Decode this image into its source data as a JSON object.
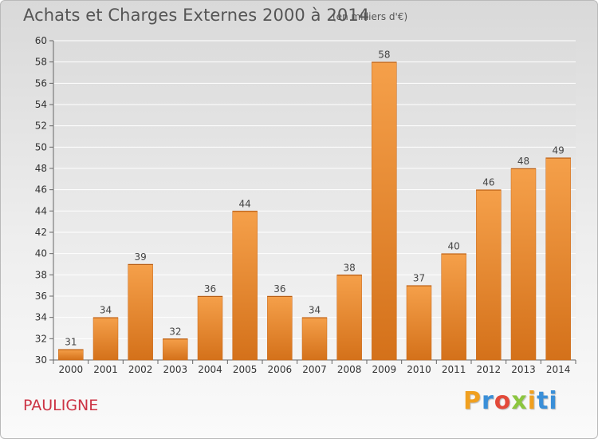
{
  "header": {
    "title": "Achats et Charges Externes 2000 à 2014",
    "unit": "(en milliers d'€)"
  },
  "footer": {
    "commune": "PAULIGNE",
    "logo": [
      "P",
      "r",
      "o",
      "x",
      "i",
      "ti"
    ]
  },
  "colors": {
    "bar_top": "#f5a04a",
    "bar_bottom": "#d4711a",
    "commune": "#cc3344"
  },
  "chart_data": {
    "type": "bar",
    "title": "Achats et Charges Externes 2000 à 2014",
    "subtitle": "(en milliers d'€)",
    "categories": [
      "2000",
      "2001",
      "2002",
      "2003",
      "2004",
      "2005",
      "2006",
      "2007",
      "2008",
      "2009",
      "2010",
      "2011",
      "2012",
      "2013",
      "2014"
    ],
    "values": [
      31,
      34,
      39,
      32,
      36,
      44,
      36,
      34,
      38,
      58,
      37,
      40,
      46,
      48,
      49
    ],
    "ylim": [
      30,
      60
    ],
    "yticks": [
      30,
      32,
      34,
      36,
      38,
      40,
      42,
      44,
      46,
      48,
      50,
      52,
      54,
      56,
      58,
      60
    ],
    "grid": "horizontal",
    "data_labels": true,
    "legend": "none"
  }
}
